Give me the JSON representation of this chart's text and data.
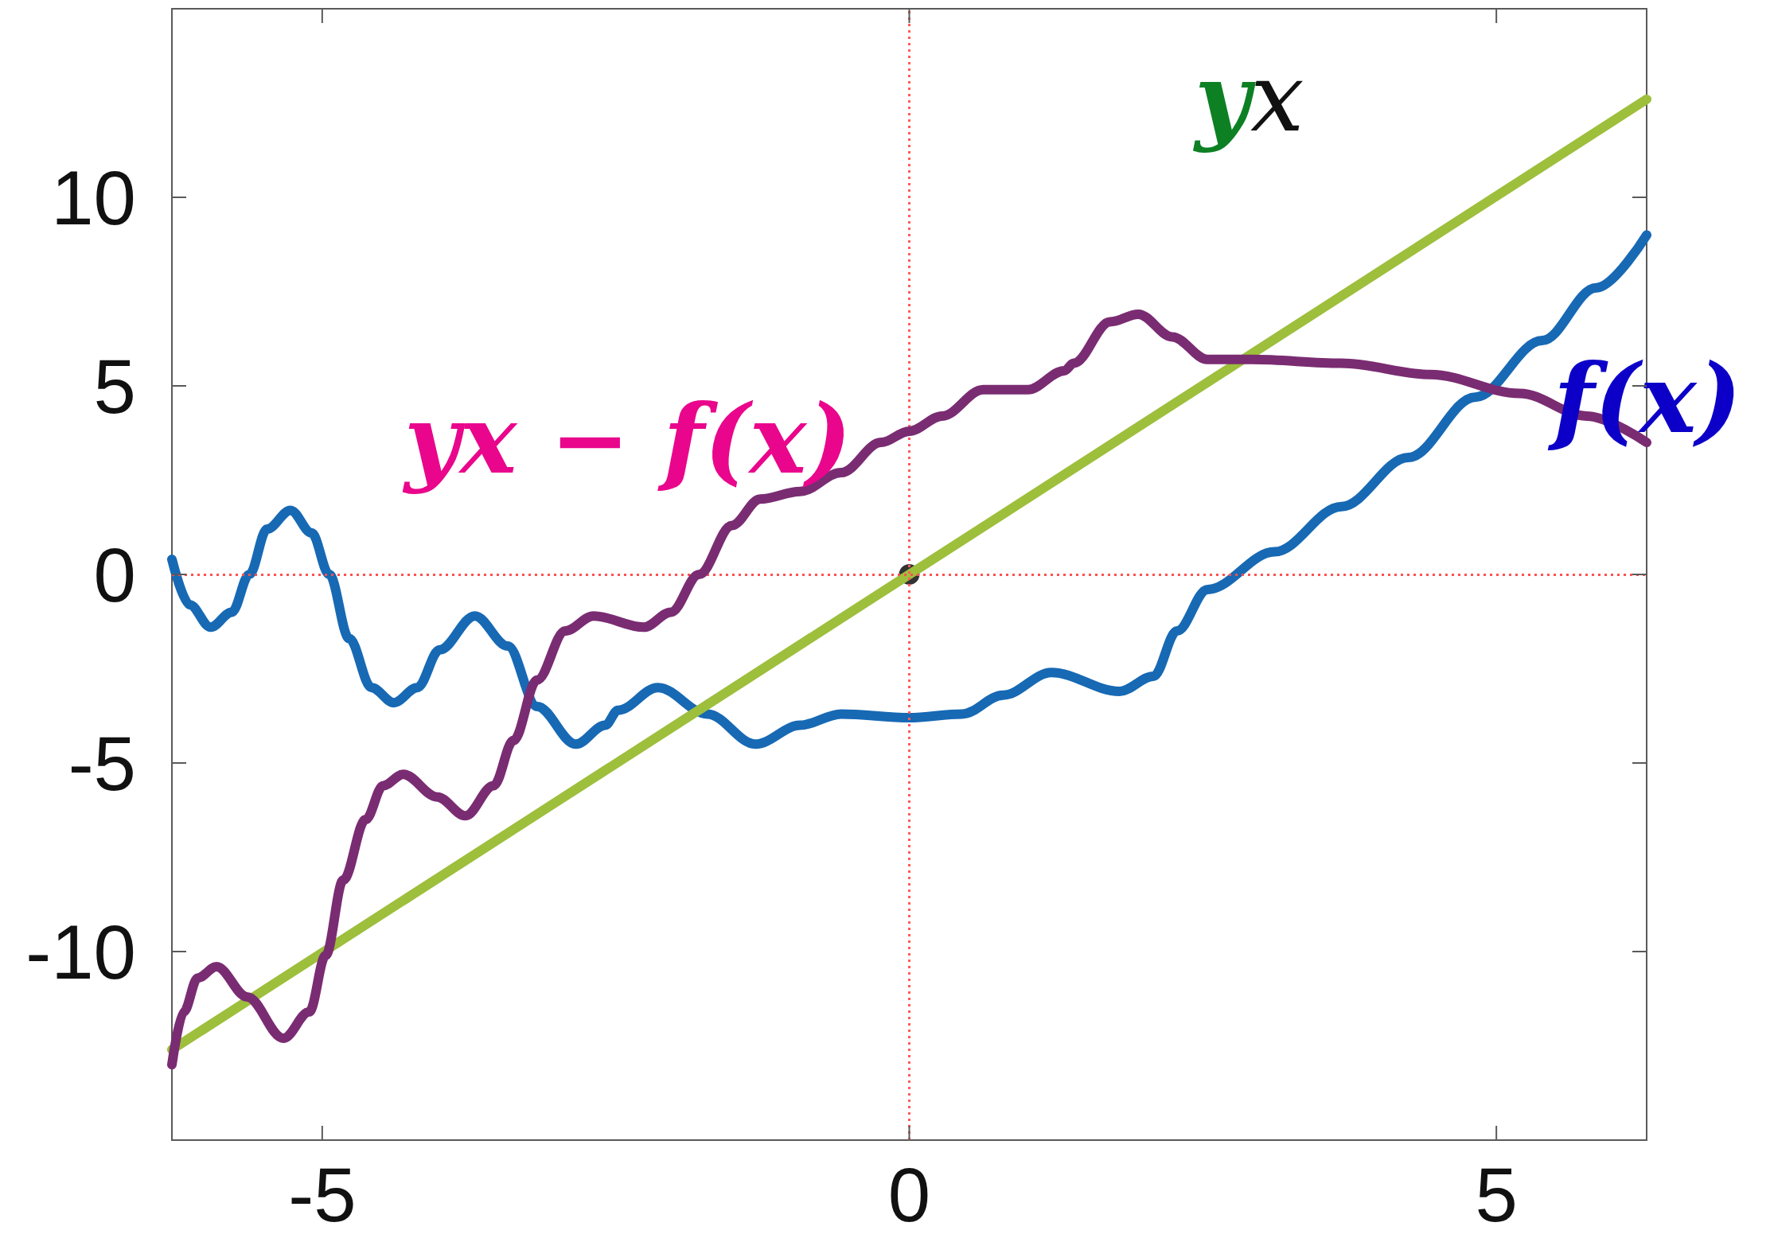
{
  "chart_data": {
    "type": "line",
    "series": [
      {
        "name": "f(x)",
        "color": "#1769b4",
        "x": [
          -6.28,
          -6.13,
          -5.95,
          -5.77,
          -5.62,
          -5.47,
          -5.27,
          -5.09,
          -4.94,
          -4.77,
          -4.58,
          -4.39,
          -4.19,
          -4.0,
          -3.7,
          -3.42,
          -3.17,
          -2.84,
          -2.59,
          -2.48,
          -2.14,
          -1.72,
          -1.31,
          -0.93,
          -0.58,
          0,
          0.45,
          0.8,
          1.21,
          1.79,
          2.08,
          2.28,
          2.54,
          3.11,
          3.68,
          4.25,
          4.82,
          5.39,
          5.85,
          6.28
        ],
        "values": [
          0.4,
          -0.8,
          -1.4,
          -1.0,
          0.0,
          1.2,
          1.7,
          1.1,
          0,
          -1.7,
          -3.0,
          -3.4,
          -3.0,
          -2.0,
          -1.1,
          -1.9,
          -3.5,
          -4.5,
          -4.0,
          -3.6,
          -3.0,
          -3.7,
          -4.5,
          -4.0,
          -3.7,
          -3.8,
          -3.7,
          -3.2,
          -2.6,
          -3.1,
          -2.7,
          -1.5,
          -0.4,
          0.6,
          1.8,
          3.1,
          4.7,
          6.2,
          7.6,
          9.0
        ]
      },
      {
        "name": "yx",
        "color": "#9dbf3c",
        "x": [
          -6.28,
          6.28
        ],
        "values": [
          -12.6,
          12.6
        ]
      },
      {
        "name": "yx − f(x)",
        "color": "#7a2c72",
        "x": [
          -6.28,
          -6.18,
          -6.06,
          -5.9,
          -5.64,
          -5.33,
          -5.11,
          -4.97,
          -4.82,
          -4.63,
          -4.48,
          -4.31,
          -4.02,
          -3.78,
          -3.54,
          -3.37,
          -3.17,
          -2.93,
          -2.69,
          -2.26,
          -2.03,
          -1.79,
          -1.51,
          -1.27,
          -0.93,
          -0.58,
          -0.24,
          0,
          0.28,
          0.63,
          1.01,
          1.32,
          1.4,
          1.71,
          1.95,
          2.24,
          2.54,
          2.92,
          3.68,
          4.44,
          5.2,
          5.77,
          6.28
        ],
        "values": [
          -13.0,
          -11.6,
          -10.7,
          -10.4,
          -11.2,
          -12.3,
          -11.6,
          -10.1,
          -8.1,
          -6.5,
          -5.6,
          -5.3,
          -5.9,
          -6.4,
          -5.6,
          -4.4,
          -2.8,
          -1.5,
          -1.1,
          -1.4,
          -1.0,
          0.0,
          1.3,
          2.0,
          2.2,
          2.7,
          3.5,
          3.8,
          4.2,
          4.9,
          4.9,
          5.4,
          5.6,
          6.7,
          6.9,
          6.3,
          5.7,
          5.7,
          5.6,
          5.3,
          4.8,
          4.2,
          3.5
        ]
      },
      {
        "type": "scatter",
        "color": "#000000",
        "marker": "circle",
        "x": [
          0
        ],
        "values": [
          0
        ]
      }
    ],
    "xlim": [
      -6.28,
      6.28
    ],
    "xticks": [
      -5,
      0,
      5
    ],
    "ylim": [
      -15,
      15
    ],
    "yticks": [
      -10,
      -5,
      0,
      5,
      10
    ],
    "ref_lines": [
      {
        "axis": "x",
        "value": 0,
        "color": "#ff5a5a",
        "line_style": "dotted"
      },
      {
        "axis": "y",
        "value": 0,
        "color": "#ff5050",
        "line_style": "dotted"
      }
    ],
    "marker": "none",
    "line_style": "solid"
  }
}
